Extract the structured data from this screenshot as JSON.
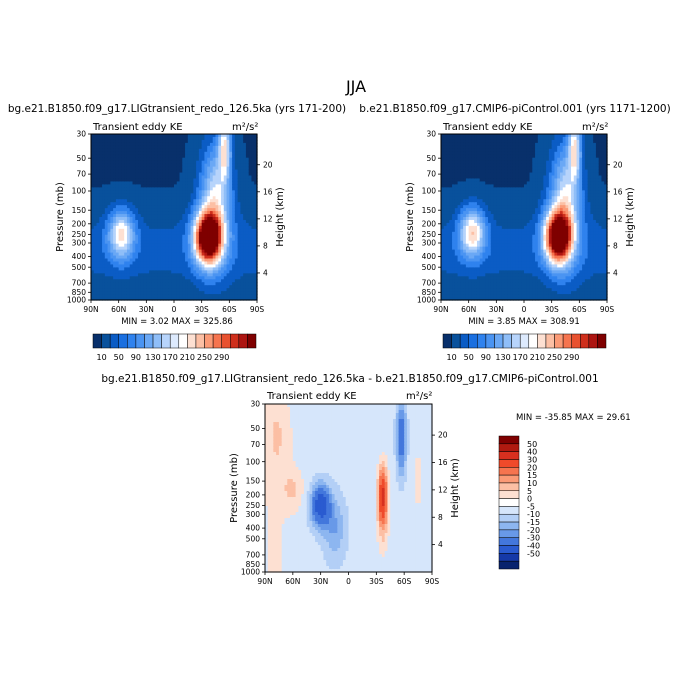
{
  "figure": {
    "title": "JJA"
  },
  "chart_data": [
    {
      "type": "heatmap",
      "title": "bg.e21.B1850.f09_g17.LIGtransient_redo_126.5ka (yrs 171-200)",
      "subtitle": "Transient eddy KE",
      "units": "m²/s²",
      "xlabel": "",
      "ylabel": "Pressure (mb)",
      "y2label": "Height (km)",
      "x_ticks": [
        "90N",
        "60N",
        "30N",
        "0",
        "30S",
        "60S",
        "90S"
      ],
      "x_range": [
        90,
        -90
      ],
      "y_ticks": [
        30,
        50,
        70,
        100,
        150,
        200,
        250,
        300,
        400,
        500,
        700,
        850,
        1000
      ],
      "y_range": [
        1000,
        30
      ],
      "y_scale": "log",
      "y2_ticks": [
        4,
        8,
        12,
        16,
        20
      ],
      "min_label": "MIN =    3.02   MAX =  325.86",
      "min": 3.02,
      "max": 325.86,
      "colorbar": {
        "labels": [
          "10",
          "50",
          "90",
          "130",
          "170",
          "210",
          "250",
          "290"
        ],
        "levels": [
          10,
          30,
          50,
          70,
          90,
          110,
          130,
          150,
          170,
          190,
          210,
          230,
          250,
          270,
          290
        ],
        "colors": [
          "#08306b",
          "#08519c",
          "#0b5cc5",
          "#1a6fe0",
          "#2f82ee",
          "#4a94f2",
          "#6aa8f5",
          "#8fbef8",
          "#b7d4fb",
          "#ddeafd",
          "#ffffff",
          "#fde0d2",
          "#fcbfa4",
          "#fb9a76",
          "#f6744f",
          "#e8512f",
          "#cf2f1c",
          "#ad1511",
          "#7f0000"
        ]
      },
      "features": [
        {
          "lat": 57,
          "p": 250,
          "value": 150,
          "width_deg": 14,
          "depth_dec": 0.22
        },
        {
          "lat": -37,
          "p": 270,
          "value": 320,
          "width_deg": 15,
          "depth_dec": 0.24
        },
        {
          "lat": -55,
          "p": 40,
          "value": 140,
          "width_deg": 7,
          "depth_dec": 0.28
        },
        {
          "lat": -45,
          "p": 100,
          "value": 80,
          "width_deg": 15,
          "depth_dec": 0.4
        }
      ]
    },
    {
      "type": "heatmap",
      "title": "b.e21.B1850.f09_g17.CMIP6-piControl.001 (yrs 1171-1200)",
      "subtitle": "Transient eddy KE",
      "units": "m²/s²",
      "xlabel": "",
      "ylabel": "Pressure (mb)",
      "y2label": "Height (km)",
      "x_ticks": [
        "90N",
        "60N",
        "30N",
        "0",
        "30S",
        "60S",
        "90S"
      ],
      "x_range": [
        90,
        -90
      ],
      "y_ticks": [
        30,
        50,
        70,
        100,
        150,
        200,
        250,
        300,
        400,
        500,
        700,
        850,
        1000
      ],
      "y_range": [
        1000,
        30
      ],
      "y_scale": "log",
      "y2_ticks": [
        4,
        8,
        12,
        16,
        20
      ],
      "min_label": "MIN =    3.85   MAX =  308.91",
      "min": 3.85,
      "max": 308.91,
      "colorbar": {
        "labels": [
          "10",
          "50",
          "90",
          "130",
          "170",
          "210",
          "250",
          "290"
        ],
        "levels": [
          10,
          30,
          50,
          70,
          90,
          110,
          130,
          150,
          170,
          190,
          210,
          230,
          250,
          270,
          290
        ],
        "colors": [
          "#08306b",
          "#08519c",
          "#0b5cc5",
          "#1a6fe0",
          "#2f82ee",
          "#4a94f2",
          "#6aa8f5",
          "#8fbef8",
          "#b7d4fb",
          "#ddeafd",
          "#ffffff",
          "#fde0d2",
          "#fcbfa4",
          "#fb9a76",
          "#f6744f",
          "#e8512f",
          "#cf2f1c",
          "#ad1511",
          "#7f0000"
        ]
      },
      "features": [
        {
          "lat": 56,
          "p": 240,
          "value": 160,
          "width_deg": 14,
          "depth_dec": 0.22
        },
        {
          "lat": -37,
          "p": 265,
          "value": 305,
          "width_deg": 15,
          "depth_dec": 0.24
        },
        {
          "lat": -55,
          "p": 40,
          "value": 140,
          "width_deg": 7,
          "depth_dec": 0.28
        },
        {
          "lat": -45,
          "p": 100,
          "value": 80,
          "width_deg": 15,
          "depth_dec": 0.4
        }
      ]
    },
    {
      "type": "heatmap",
      "title": "bg.e21.B1850.f09_g17.LIGtransient_redo_126.5ka - b.e21.B1850.f09_g17.CMIP6-piControl.001",
      "subtitle": "Transient eddy KE",
      "units": "m²/s²",
      "xlabel": "",
      "ylabel": "Pressure (mb)",
      "y2label": "Height (km)",
      "x_ticks": [
        "90N",
        "60N",
        "30N",
        "0",
        "30S",
        "60S",
        "90S"
      ],
      "x_range": [
        90,
        -90
      ],
      "y_ticks": [
        30,
        50,
        70,
        100,
        150,
        200,
        250,
        300,
        400,
        500,
        700,
        850,
        1000
      ],
      "y_range": [
        1000,
        30
      ],
      "y_scale": "log",
      "y2_ticks": [
        4,
        8,
        12,
        16,
        20
      ],
      "min_label": "MIN = -35.85   MAX =  29.61",
      "min": -35.85,
      "max": 29.61,
      "colorbar": {
        "labels": [
          "50",
          "40",
          "30",
          "20",
          "15",
          "10",
          "5",
          "0",
          "-5",
          "-10",
          "-15",
          "-20",
          "-30",
          "-40",
          "-50"
        ],
        "levels": [
          50,
          40,
          30,
          20,
          15,
          10,
          5,
          0,
          -5,
          -10,
          -15,
          -20,
          -30,
          -40,
          -50
        ],
        "colors": [
          "#7f0000",
          "#b01a10",
          "#d7301f",
          "#ef4a2a",
          "#f6744f",
          "#fb9a76",
          "#fcbfa4",
          "#fde0d2",
          "#ffffff",
          "#d6e6fb",
          "#b3cff6",
          "#8db6f0",
          "#6899e8",
          "#4377dc",
          "#2a5bd0",
          "#1539a8",
          "#08236e"
        ]
      },
      "features": [
        {
          "lat": 30,
          "p": 250,
          "value": -35,
          "width_deg": 10,
          "depth_dec": 0.18
        },
        {
          "lat": 15,
          "p": 400,
          "value": -12,
          "width_deg": 12,
          "depth_dec": 0.28
        },
        {
          "lat": 60,
          "p": 180,
          "value": 8,
          "width_deg": 12,
          "depth_dec": 0.2
        },
        {
          "lat": -37,
          "p": 200,
          "value": 28,
          "width_deg": 5,
          "depth_dec": 0.25
        },
        {
          "lat": -37,
          "p": 300,
          "value": 10,
          "width_deg": 6,
          "depth_dec": 0.35
        },
        {
          "lat": -57,
          "p": 60,
          "value": -25,
          "width_deg": 5,
          "depth_dec": 0.32
        },
        {
          "lat": 75,
          "p": 60,
          "value": 5,
          "width_deg": 15,
          "depth_dec": 0.35
        },
        {
          "lat": -75,
          "p": 150,
          "value": 5,
          "width_deg": 6,
          "depth_dec": 0.3
        }
      ]
    }
  ]
}
